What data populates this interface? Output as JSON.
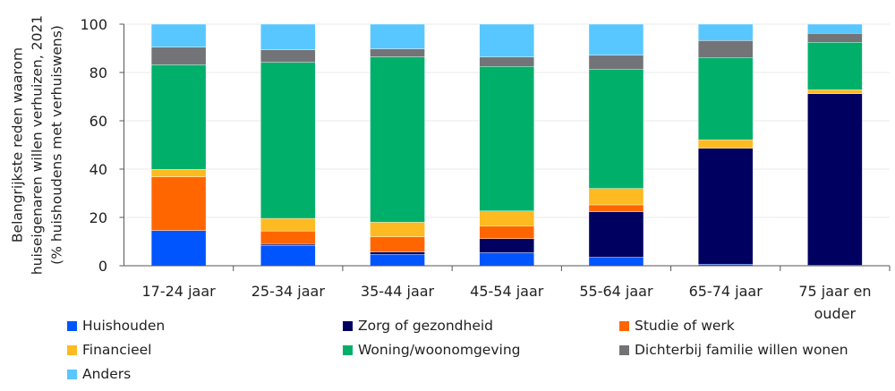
{
  "chart_data": {
    "type": "bar",
    "stacked": true,
    "ylabel": "Belangrijkste reden waarom huiseigenaren willen verhuizen, 2021 (% huishoudens met verhuiswens)",
    "ylabel_lines": [
      "Belangrijkste reden waarom",
      "huiseigenaren willen verhuizen, 2021",
      "(% huishoudens met verhuiswens)"
    ],
    "ylim": [
      0,
      100
    ],
    "yticks": [
      "0",
      "20",
      "40",
      "60",
      "80",
      "100"
    ],
    "grid": true,
    "legend_position": "bottom",
    "categories": [
      "17-24 jaar",
      "25-34 jaar",
      "35-44 jaar",
      "45-54 jaar",
      "55-64 jaar",
      "65-74 jaar",
      "75 jaar en ouder"
    ],
    "category_lines": [
      [
        "17-24 jaar"
      ],
      [
        "25-34 jaar"
      ],
      [
        "35-44 jaar"
      ],
      [
        "45-54 jaar"
      ],
      [
        "55-64 jaar"
      ],
      [
        "65-74 jaar"
      ],
      [
        "75 jaar en",
        "ouder"
      ]
    ],
    "series": [
      {
        "name": "Huishouden",
        "color": "#0055ff",
        "values": [
          14.6,
          8.4,
          4.7,
          5.4,
          3.5,
          0.6,
          0.2
        ]
      },
      {
        "name": "Zorg of gezondheid",
        "color": "#000060",
        "values": [
          0,
          0.5,
          1.0,
          5.8,
          18.8,
          48.0,
          71.0
        ]
      },
      {
        "name": "Studie of werk",
        "color": "#ff6600",
        "values": [
          22.2,
          5.5,
          6.3,
          5.2,
          2.9,
          0,
          0
        ]
      },
      {
        "name": "Financieel",
        "color": "#fdba21",
        "values": [
          3.1,
          5.2,
          6.0,
          6.3,
          6.8,
          3.5,
          1.6
        ]
      },
      {
        "name": "Woning/woonomgeving",
        "color": "#00b06a",
        "values": [
          43.3,
          64.6,
          68.5,
          59.8,
          49.4,
          33.9,
          19.7
        ]
      },
      {
        "name": "Dichterbij familie willen wonen",
        "color": "#737478",
        "values": [
          7.3,
          5.2,
          3.3,
          3.9,
          5.8,
          7.2,
          3.7
        ]
      },
      {
        "name": "Anders",
        "color": "#58c7ff",
        "values": [
          9.5,
          10.6,
          10.2,
          13.6,
          12.8,
          6.8,
          3.8
        ]
      }
    ]
  }
}
